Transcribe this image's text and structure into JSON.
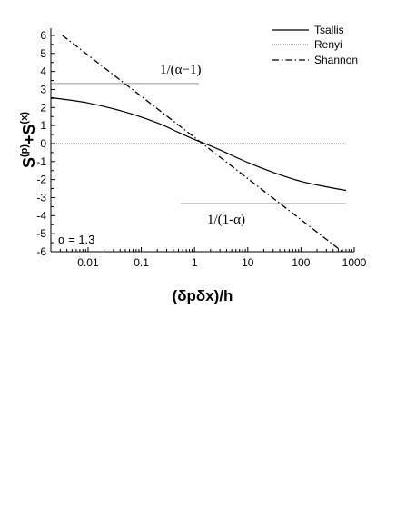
{
  "chart_data": {
    "type": "line",
    "xlabel": "(δpδx)/h",
    "ylabel_base": "S",
    "ylabel_sup1": "(p)",
    "ylabel_plus": "+S",
    "ylabel_sup2": "(x)",
    "x_scale": "log",
    "xlim": [
      0.002,
      1000
    ],
    "ylim": [
      -6,
      6.4
    ],
    "x_ticks": [
      0.01,
      0.1,
      1,
      10,
      100,
      1000
    ],
    "x_tick_labels": [
      "0.01",
      "0.1",
      "1",
      "10",
      "100",
      "1000"
    ],
    "y_ticks": [
      -6,
      -5,
      -4,
      -3,
      -2,
      -1,
      0,
      1,
      2,
      3,
      4,
      5,
      6
    ],
    "y_tick_labels": [
      "-6",
      "-5",
      "-4",
      "-3",
      "-2",
      "-1",
      "0",
      "1",
      "2",
      "3",
      "4",
      "5",
      "6"
    ],
    "grid": false,
    "legend_position": "top-right",
    "series": [
      {
        "name": "Tsallis",
        "style": "solid",
        "x": [
          0.002,
          0.01,
          0.05,
          0.2,
          0.5,
          1,
          1.57,
          3,
          10,
          30,
          100,
          300,
          700
        ],
        "y": [
          2.55,
          2.25,
          1.75,
          1.15,
          0.62,
          0.22,
          0.0,
          -0.35,
          -1.05,
          -1.6,
          -2.1,
          -2.4,
          -2.6
        ]
      },
      {
        "name": "Renyi",
        "style": "dotted",
        "x": [
          0.002,
          700
        ],
        "y": [
          0,
          0
        ]
      },
      {
        "name": "Shannon",
        "style": "dashdot",
        "x": [
          0.0033,
          600
        ],
        "y": [
          6.0,
          -6.0
        ]
      }
    ],
    "hlines": [
      {
        "label": "1/(α−1)",
        "y": 3.33,
        "x_from": 0.002,
        "x_to": 1.2
      },
      {
        "label": "1/(1-α)",
        "y": -3.33,
        "x_from": 0.55,
        "x_to": 700
      }
    ],
    "annotations": [
      {
        "text": "α = 1.3"
      }
    ]
  }
}
